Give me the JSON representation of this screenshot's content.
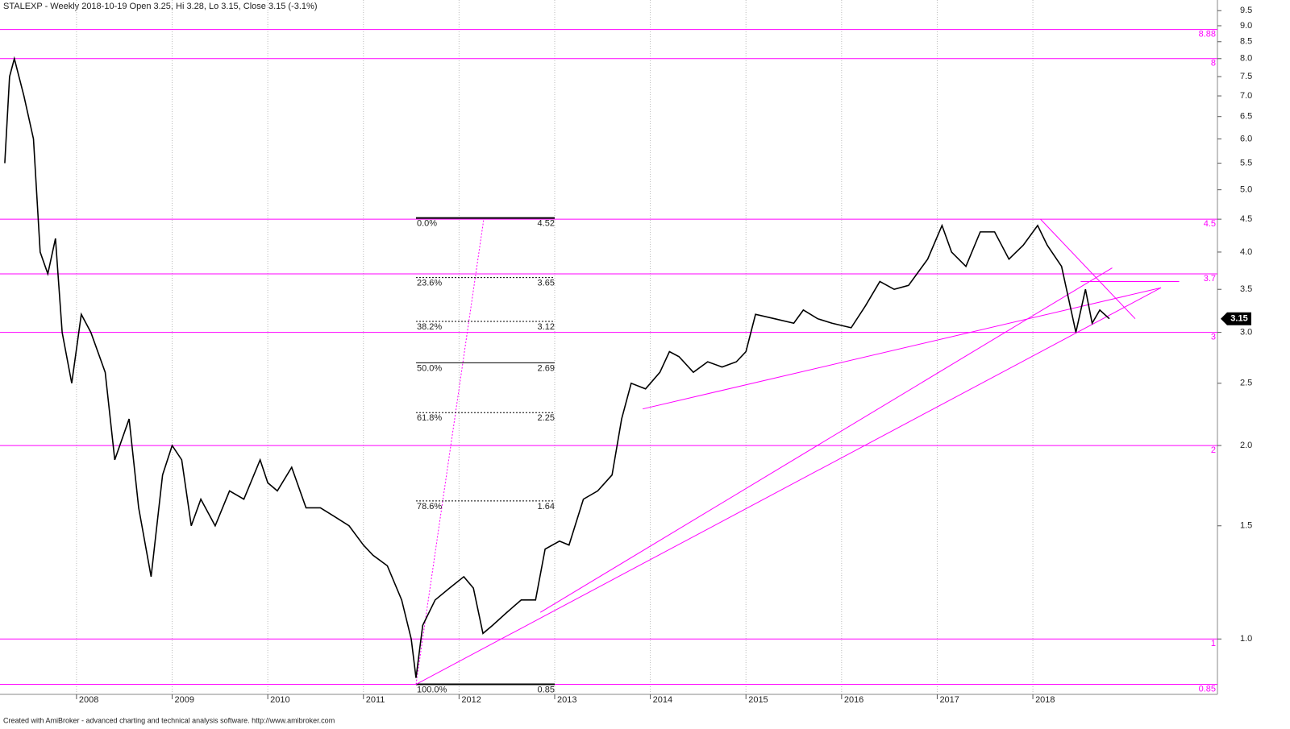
{
  "chart_data": {
    "type": "line",
    "title": "STALEXP - Weekly 2018-10-19 Open 3.25, Hi 3.28, Lo 3.15, Close 3.15 (-3.1%)",
    "footer": "Created with AmiBroker - advanced charting and technical analysis software. http://www.amibroker.com",
    "log_scale": true,
    "grid": true,
    "xlim": [
      2007.2,
      2019.93
    ],
    "ylim": [
      0.82,
      9.87
    ],
    "xticks": [
      2008,
      2009,
      2010,
      2011,
      2012,
      2013,
      2014,
      2015,
      2016,
      2017,
      2018
    ],
    "yticks": [
      {
        "value": 1,
        "label": "1.0"
      },
      1.5,
      {
        "value": 2,
        "label": "2.0"
      },
      2.5,
      {
        "value": 3,
        "label": "3.0"
      },
      3.5,
      {
        "value": 4,
        "label": "4.0"
      },
      4.5,
      {
        "value": 5,
        "label": "5.0"
      },
      5.5,
      {
        "value": 6,
        "label": "6.0"
      },
      6.5,
      {
        "value": 7,
        "label": "7.0"
      },
      7.5,
      {
        "value": 8,
        "label": "8.0"
      },
      8.5,
      {
        "value": 9,
        "label": "9.0"
      },
      9.5
    ],
    "series": [
      {
        "name": "STALEXP",
        "color": "#000000",
        "x": [
          2007.25,
          2007.3,
          2007.35,
          2007.45,
          2007.55,
          2007.62,
          2007.7,
          2007.78,
          2007.85,
          2007.95,
          2008.05,
          2008.15,
          2008.3,
          2008.4,
          2008.55,
          2008.65,
          2008.78,
          2008.9,
          2009.0,
          2009.1,
          2009.2,
          2009.3,
          2009.45,
          2009.6,
          2009.75,
          2009.92,
          2010.0,
          2010.1,
          2010.25,
          2010.4,
          2010.55,
          2010.7,
          2010.85,
          2011.0,
          2011.1,
          2011.25,
          2011.4,
          2011.5,
          2011.55,
          2011.62,
          2011.75,
          2011.9,
          2012.05,
          2012.15,
          2012.25,
          2012.35,
          2012.5,
          2012.65,
          2012.8,
          2012.9,
          2013.05,
          2013.15,
          2013.3,
          2013.45,
          2013.6,
          2013.7,
          2013.8,
          2013.95,
          2014.1,
          2014.2,
          2014.3,
          2014.45,
          2014.6,
          2014.75,
          2014.9,
          2015.0,
          2015.1,
          2015.3,
          2015.5,
          2015.6,
          2015.75,
          2015.9,
          2016.1,
          2016.25,
          2016.4,
          2016.55,
          2016.7,
          2016.9,
          2017.05,
          2017.15,
          2017.3,
          2017.45,
          2017.6,
          2017.75,
          2017.9,
          2018.05,
          2018.15,
          2018.3,
          2018.45,
          2018.55,
          2018.62,
          2018.7,
          2018.8
        ],
        "values": [
          5.5,
          7.5,
          8.0,
          7.0,
          6.0,
          4.0,
          3.7,
          4.2,
          3.0,
          2.5,
          3.2,
          3.0,
          2.6,
          1.9,
          2.2,
          1.6,
          1.25,
          1.8,
          2.0,
          1.9,
          1.5,
          1.65,
          1.5,
          1.7,
          1.65,
          1.9,
          1.75,
          1.7,
          1.85,
          1.6,
          1.6,
          1.55,
          1.5,
          1.4,
          1.35,
          1.3,
          1.15,
          1.0,
          0.87,
          1.05,
          1.15,
          1.2,
          1.25,
          1.2,
          1.02,
          1.05,
          1.1,
          1.15,
          1.15,
          1.38,
          1.42,
          1.4,
          1.65,
          1.7,
          1.8,
          2.2,
          2.5,
          2.45,
          2.6,
          2.8,
          2.75,
          2.6,
          2.7,
          2.65,
          2.7,
          2.8,
          3.2,
          3.15,
          3.1,
          3.25,
          3.15,
          3.1,
          3.05,
          3.3,
          3.6,
          3.5,
          3.55,
          3.9,
          4.4,
          4.0,
          3.8,
          4.3,
          4.3,
          3.9,
          4.1,
          4.4,
          4.1,
          3.8,
          3.0,
          3.5,
          3.1,
          3.25,
          3.15
        ]
      }
    ],
    "last_value": 3.15,
    "levels_color": "#ff00ff",
    "levels": [
      8.88,
      8,
      4.5,
      3.7,
      3,
      2,
      1,
      0.85
    ],
    "trendlines": [
      {
        "x": [
          2011.55,
          2019.34
        ],
        "values": [
          0.85,
          3.52
        ]
      },
      {
        "x": [
          2012.85,
          2018.83
        ],
        "values": [
          1.1,
          3.78
        ]
      },
      {
        "x": [
          2013.92,
          2019.34
        ],
        "values": [
          2.28,
          3.52
        ]
      },
      {
        "x": [
          2018.08,
          2019.07
        ],
        "values": [
          4.5,
          3.15
        ]
      },
      {
        "x": [
          2018.5,
          2019.53
        ],
        "values": [
          3.6,
          3.6
        ]
      }
    ],
    "fibonacci": {
      "x": [
        2011.55,
        2013.0
      ],
      "diagonal": {
        "x": [
          2011.55,
          2012.26
        ],
        "values": [
          0.85,
          4.52
        ]
      },
      "levels": [
        {
          "label": "0.0%",
          "value": 4.52
        },
        {
          "label": "23.6%",
          "value": 3.65
        },
        {
          "label": "38.2%",
          "value": 3.12
        },
        {
          "label": "50.0%",
          "value": 2.69
        },
        {
          "label": "61.8%",
          "value": 2.25
        },
        {
          "label": "78.6%",
          "value": 1.64
        },
        {
          "label": "100.0%",
          "value": 0.85
        }
      ]
    }
  }
}
